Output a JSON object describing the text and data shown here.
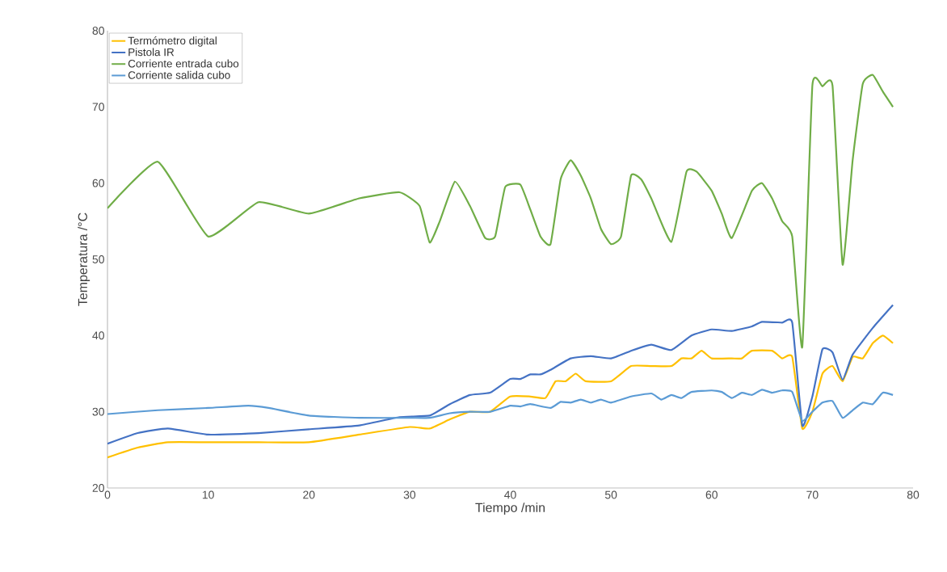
{
  "chart_data": {
    "type": "line",
    "xlabel": "Tiempo /min",
    "ylabel": "Temperatura /°C",
    "xlim": [
      0,
      80
    ],
    "ylim": [
      20,
      80
    ],
    "xticks": [
      0,
      10,
      20,
      30,
      40,
      50,
      60,
      70,
      80
    ],
    "yticks": [
      20,
      30,
      40,
      50,
      60,
      70,
      80
    ],
    "grid": false,
    "legend": "top left",
    "line_style": "solid",
    "series": [
      {
        "name": "Termómetro digital",
        "color": "#ffc000",
        "x": [
          0,
          3,
          6,
          10,
          15,
          20,
          25,
          30,
          32,
          34,
          36,
          38,
          40,
          42,
          43.5,
          44.5,
          45.5,
          46.5,
          47.5,
          50,
          52,
          54,
          56,
          57,
          58,
          59,
          60,
          62,
          63,
          64,
          66,
          67,
          68,
          69,
          70,
          71,
          72,
          73,
          74,
          75,
          76,
          77,
          78
        ],
        "values": [
          24,
          25.3,
          26,
          26,
          26,
          26,
          27,
          28,
          27.8,
          29,
          30,
          30,
          32,
          32,
          31.8,
          34,
          34,
          35,
          34,
          34,
          36,
          36,
          36,
          37,
          37,
          38,
          37,
          37,
          37,
          38,
          38,
          37,
          37.2,
          27.8,
          30,
          35,
          36,
          34,
          37.2,
          37,
          39,
          40,
          39
        ]
      },
      {
        "name": "Pistola IR",
        "color": "#4472c4",
        "x": [
          0,
          3,
          6,
          10,
          15,
          20,
          25,
          29,
          32,
          34,
          36,
          38,
          40,
          41,
          42,
          43,
          44,
          46,
          48,
          50,
          52,
          54,
          56,
          58,
          60,
          62,
          64,
          65,
          67,
          68,
          69,
          70,
          71,
          72,
          73,
          74,
          76,
          78
        ],
        "values": [
          25.8,
          27.2,
          27.8,
          27,
          27.2,
          27.7,
          28.2,
          29.3,
          29.5,
          31,
          32.2,
          32.5,
          34.3,
          34.3,
          34.9,
          34.9,
          35.5,
          37,
          37.3,
          37,
          38,
          38.8,
          38.1,
          40,
          40.8,
          40.6,
          41.2,
          41.8,
          41.7,
          41.7,
          28.2,
          32,
          38.2,
          37.8,
          34.2,
          37.5,
          41,
          44
        ]
      },
      {
        "name": "Corriente entrada cubo",
        "color": "#70ad47",
        "x": [
          0,
          5,
          10,
          15,
          20,
          25,
          29,
          31,
          32,
          33,
          34.5,
          36,
          37.5,
          38.5,
          39.5,
          41,
          42,
          43,
          44,
          45,
          46,
          47,
          48,
          49,
          50,
          51,
          52,
          53,
          54,
          56,
          57.5,
          58.5,
          60,
          61,
          62,
          64,
          65,
          66,
          67,
          68,
          69,
          70,
          71,
          72,
          73,
          74,
          75,
          76,
          77,
          78
        ],
        "values": [
          56.7,
          62.8,
          53,
          57.5,
          56,
          58,
          58.8,
          57,
          52.2,
          55,
          60.2,
          57,
          52.8,
          53,
          59.5,
          59.8,
          56.5,
          53,
          52,
          60.5,
          63,
          61,
          58,
          54,
          52,
          53,
          61,
          60.5,
          58,
          52.3,
          61.5,
          61.5,
          59,
          56,
          52.8,
          59,
          60,
          58,
          55,
          53,
          38.5,
          72.8,
          72.7,
          72.8,
          49.3,
          63,
          73,
          74.2,
          72,
          70
        ]
      },
      {
        "name": "Corriente salida cubo",
        "color": "#5b9bd5",
        "x": [
          0,
          5,
          10,
          14,
          16,
          20,
          25,
          30,
          32,
          34,
          36,
          38,
          40,
          41,
          42,
          44,
          45,
          46,
          47,
          48,
          49,
          50,
          52,
          54,
          55,
          56,
          57,
          58,
          60,
          61,
          62,
          63,
          64,
          65,
          66,
          67,
          68,
          69,
          70,
          71,
          72,
          73,
          74,
          75,
          76,
          77,
          78
        ],
        "values": [
          29.7,
          30.2,
          30.5,
          30.8,
          30.5,
          29.5,
          29.2,
          29.2,
          29.2,
          29.8,
          30,
          30,
          30.8,
          30.7,
          31,
          30.5,
          31.3,
          31.2,
          31.6,
          31.2,
          31.6,
          31.2,
          32,
          32.4,
          31.6,
          32.2,
          31.8,
          32.6,
          32.8,
          32.6,
          31.8,
          32.5,
          32.2,
          32.9,
          32.5,
          32.8,
          32.6,
          28.8,
          30,
          31.2,
          31.4,
          29.2,
          30.2,
          31.2,
          31,
          32.5,
          32.2
        ]
      }
    ]
  }
}
